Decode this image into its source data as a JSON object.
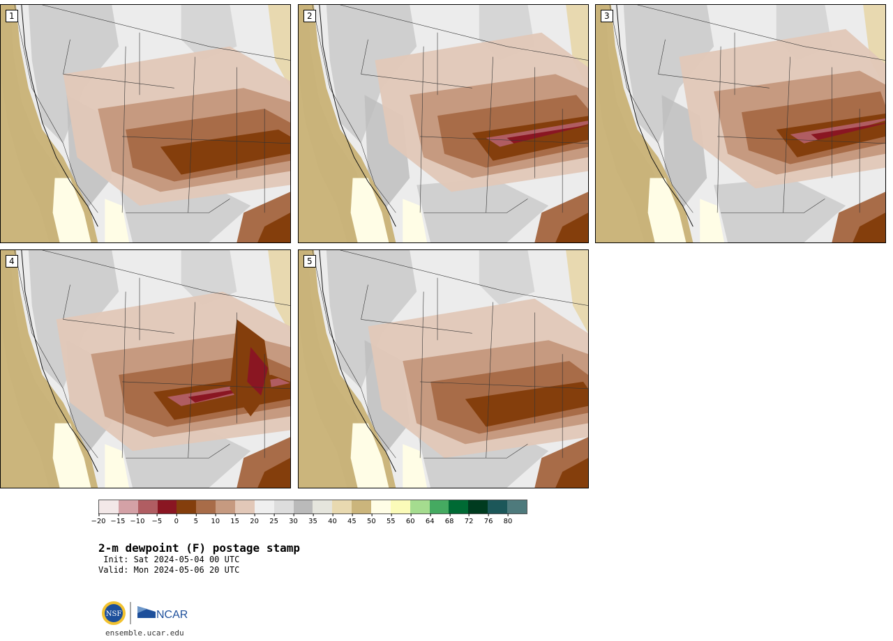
{
  "panels": [
    {
      "id": "1",
      "label": "1",
      "theme": 1
    },
    {
      "id": "2",
      "label": "2",
      "theme": 2
    },
    {
      "id": "3",
      "label": "3",
      "theme": 3
    },
    {
      "id": "4",
      "label": "4",
      "theme": 4
    },
    {
      "id": "5",
      "label": "5",
      "theme": 5
    }
  ],
  "legend": {
    "colors": [
      "#f3e8e8",
      "#d4a1a6",
      "#b05d62",
      "#8a1622",
      "#843e0c",
      "#a86c48",
      "#c69a80",
      "#e2c8b8",
      "#efefef",
      "#dddddd",
      "#bababa",
      "#e5e5dd",
      "#e8d9b0",
      "#cbb57c",
      "#fffde6",
      "#fbfbb9",
      "#a5dc8f",
      "#45aa61",
      "#006a34",
      "#003b1f",
      "#1c5759",
      "#4e7a7c"
    ],
    "ticks": [
      "−20",
      "−15",
      "−10",
      "−5",
      "0",
      "5",
      "10",
      "15",
      "20",
      "25",
      "30",
      "35",
      "40",
      "45",
      "50",
      "55",
      "60",
      "64",
      "68",
      "72",
      "76",
      "80"
    ]
  },
  "title": "2-m dewpoint (F) postage stamp",
  "init": " Init: Sat 2024-05-04 00 UTC",
  "valid": "Valid: Mon 2024-05-06 20 UTC",
  "logo": {
    "left": "NSF",
    "right": "NCAR"
  },
  "url": "ensemble.ucar.edu"
}
